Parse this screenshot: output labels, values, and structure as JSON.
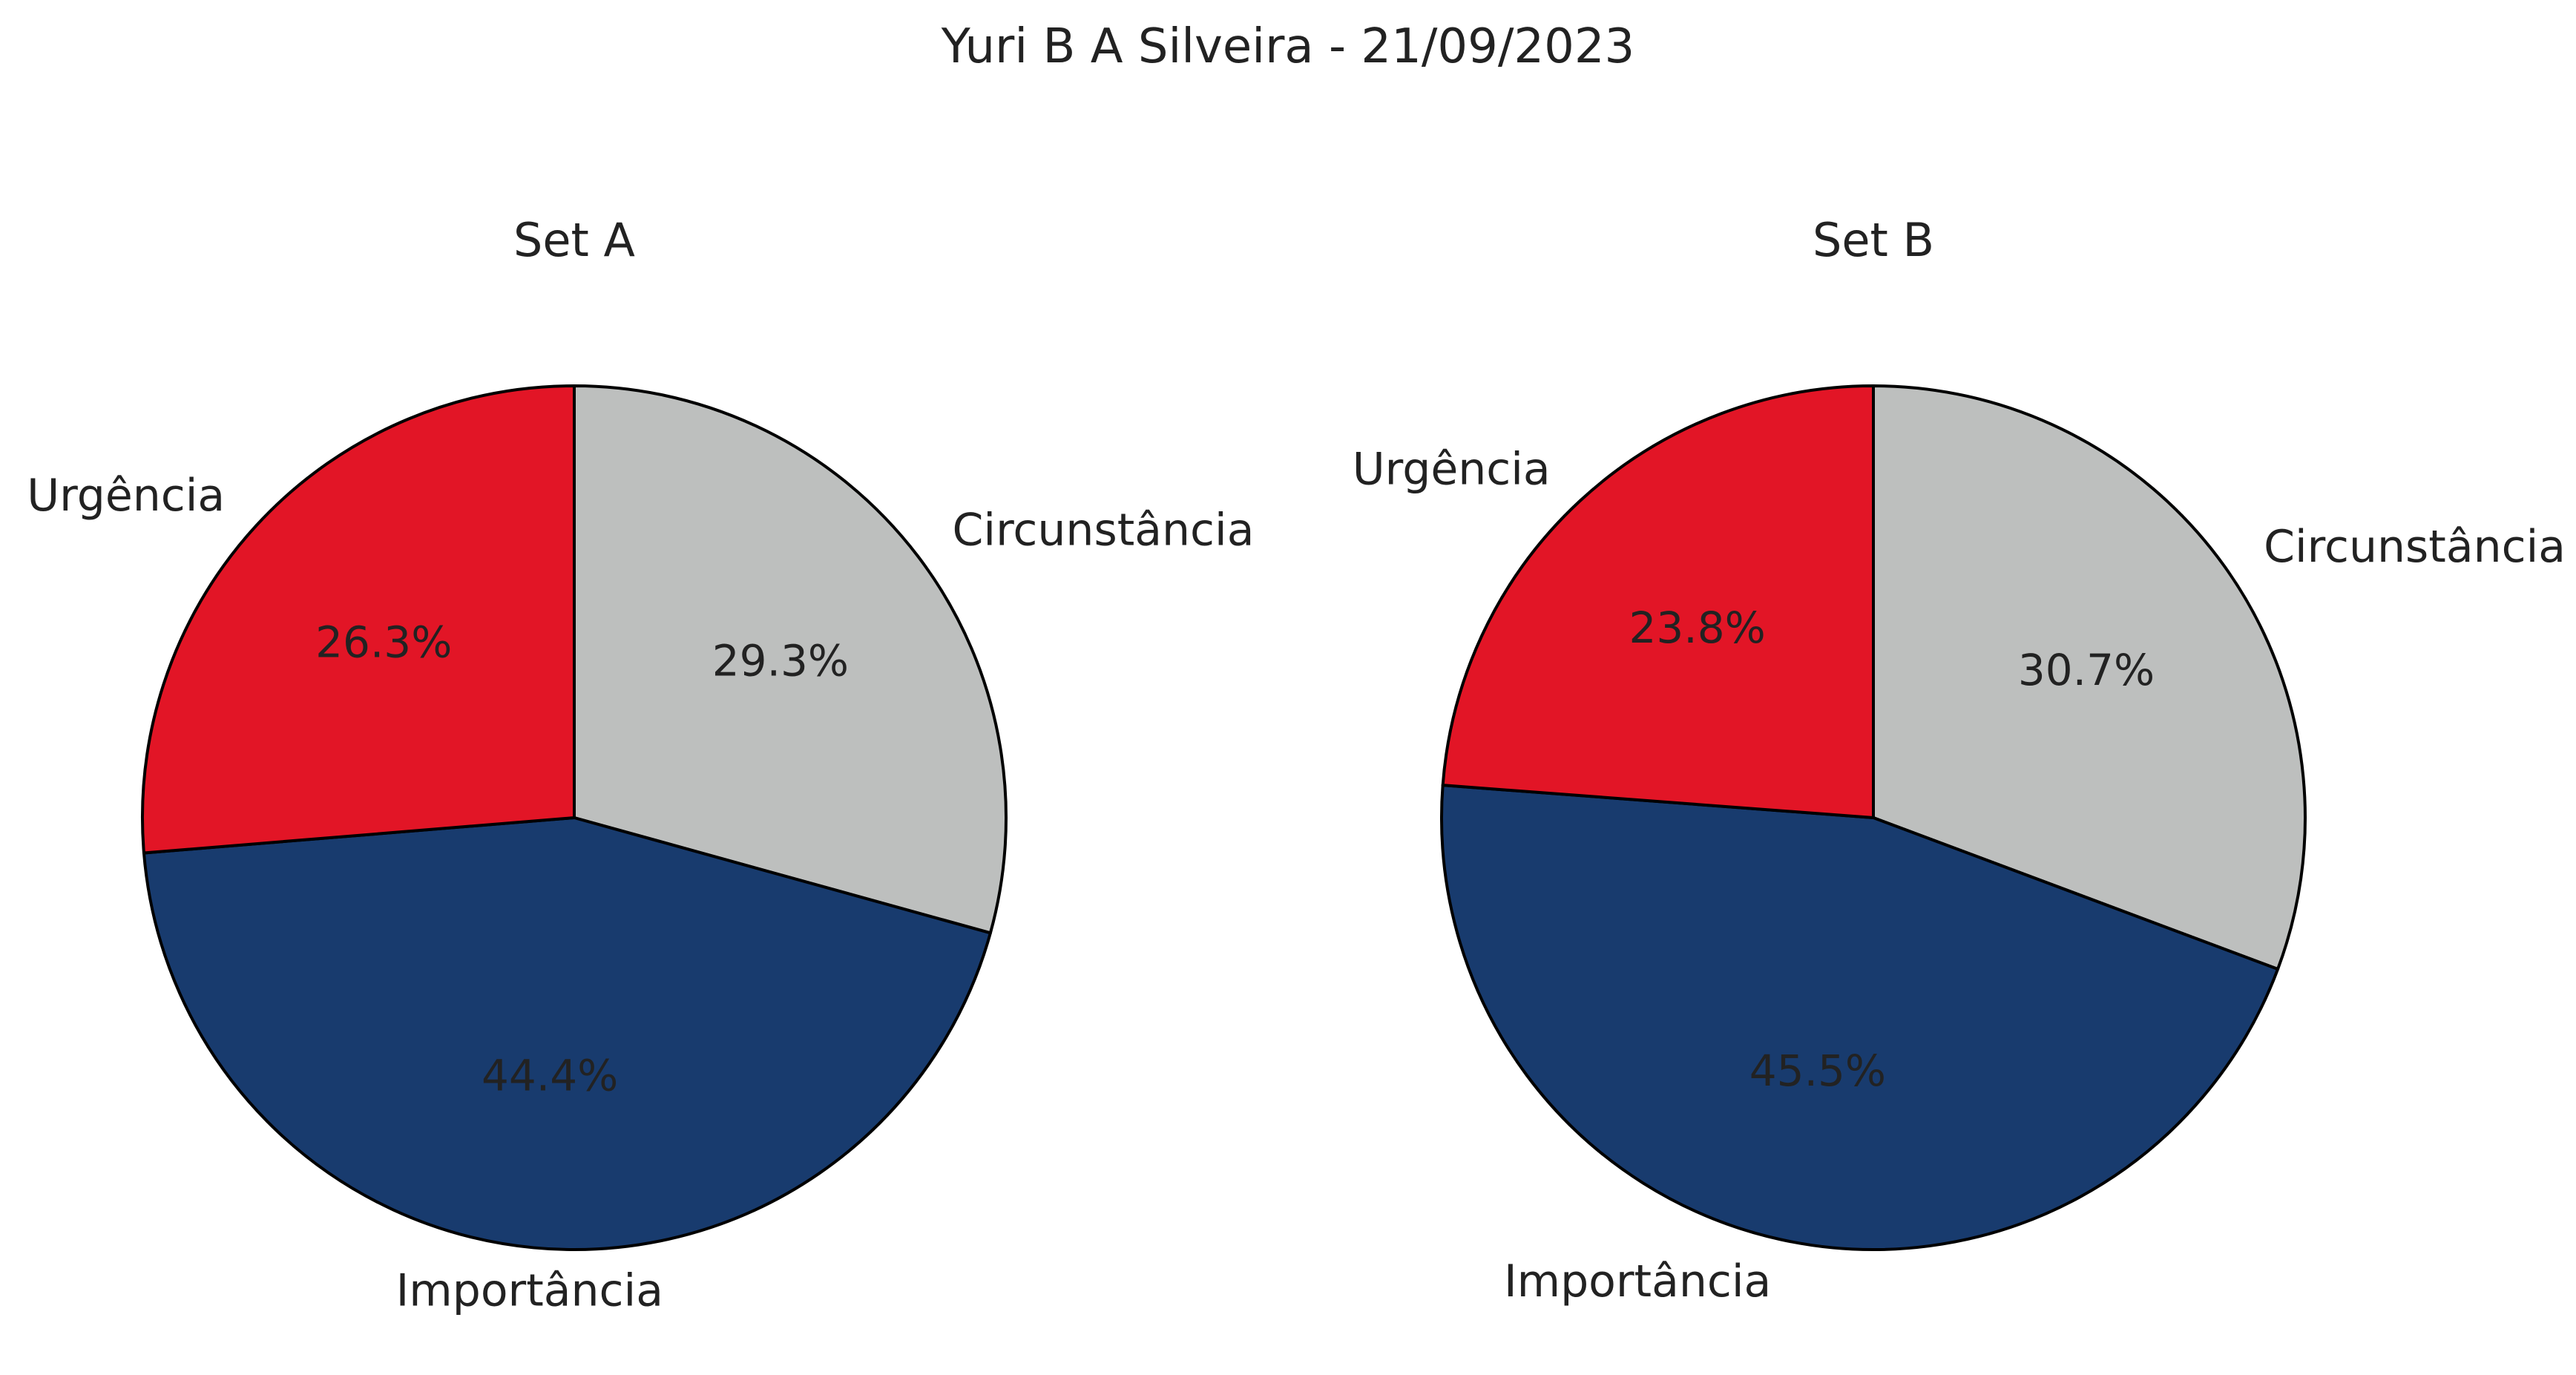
{
  "figure_title": "Yuri B A Silveira - 21/09/2023",
  "chart_data": [
    {
      "type": "pie",
      "title": "Set A",
      "categories": [
        "Circunstância",
        "Importância",
        "Urgência"
      ],
      "values": [
        29.3,
        44.4,
        26.3
      ],
      "value_labels": [
        "29.3%",
        "44.4%",
        "26.3%"
      ],
      "colors": [
        "#bdbfbe",
        "#183b6e",
        "#e21526"
      ],
      "start_angle": "12 o'clock",
      "direction": "clockwise"
    },
    {
      "type": "pie",
      "title": "Set B",
      "categories": [
        "Circunstância",
        "Importância",
        "Urgência"
      ],
      "values": [
        30.7,
        45.5,
        23.8
      ],
      "value_labels": [
        "30.7%",
        "45.5%",
        "23.8%"
      ],
      "colors": [
        "#bdbfbe",
        "#183b6e",
        "#e21526"
      ],
      "start_angle": "12 o'clock",
      "direction": "clockwise"
    }
  ]
}
